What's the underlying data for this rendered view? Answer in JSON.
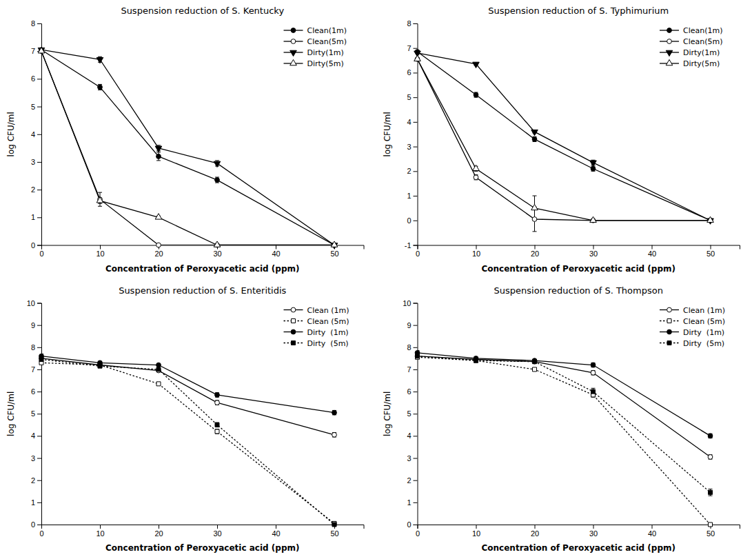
{
  "chart_data": [
    {
      "type": "line",
      "title": "Suspension reduction of S. Kentucky",
      "xlabel": "Concentration of Peroxyacetic acid (ppm)",
      "ylabel": "log CFU/ml",
      "x": [
        0,
        10,
        20,
        30,
        50
      ],
      "xlim": [
        0,
        55
      ],
      "xticks": [
        0,
        10,
        20,
        30,
        40,
        50
      ],
      "ylim": [
        0,
        8
      ],
      "yticks": [
        0,
        1,
        2,
        3,
        4,
        5,
        6,
        7,
        8
      ],
      "grid": false,
      "legend": "upper-right",
      "series": [
        {
          "name": "Clean(1m)",
          "color": "black",
          "marker": "circle-filled",
          "line_style": "solid",
          "values": [
            7.05,
            5.7,
            3.2,
            2.35,
            0.0
          ],
          "errors": [
            0.05,
            0.1,
            0.15,
            0.1,
            0.0
          ]
        },
        {
          "name": "Clean(5m)",
          "color": "black",
          "marker": "circle-open",
          "line_style": "solid",
          "values": [
            7.0,
            1.65,
            0.0,
            0.0,
            0.0
          ],
          "errors": [
            0.05,
            0.25,
            0.0,
            0.0,
            0.0
          ]
        },
        {
          "name": "Dirty(1m)",
          "color": "black",
          "marker": "triangle-down-filled",
          "line_style": "solid",
          "values": [
            7.05,
            6.7,
            3.5,
            2.95,
            0.0
          ],
          "errors": [
            0.05,
            0.1,
            0.1,
            0.1,
            0.0
          ]
        },
        {
          "name": "Dirty(5m)",
          "color": "black",
          "marker": "triangle-up-open",
          "line_style": "solid",
          "values": [
            7.0,
            1.6,
            1.0,
            0.0,
            0.0
          ],
          "errors": [
            0.05,
            0.1,
            0.05,
            0.0,
            0.0
          ]
        }
      ]
    },
    {
      "type": "line",
      "title": "Suspension reduction of S. Typhimurium",
      "xlabel": "Concentration of Peroxyacetic acid (ppm)",
      "ylabel": "log CFU/ml",
      "x": [
        0,
        10,
        20,
        30,
        50
      ],
      "xlim": [
        0,
        55
      ],
      "xticks": [
        0,
        10,
        20,
        30,
        40,
        50
      ],
      "ylim": [
        -1,
        8
      ],
      "yticks": [
        -1,
        0,
        1,
        2,
        3,
        4,
        5,
        6,
        7,
        8
      ],
      "grid": false,
      "legend": "upper-right",
      "series": [
        {
          "name": "Clean(1m)",
          "color": "black",
          "marker": "circle-filled",
          "line_style": "solid",
          "values": [
            6.85,
            5.1,
            3.3,
            2.1,
            0.0
          ],
          "errors": [
            0.05,
            0.1,
            0.1,
            0.1,
            0.0
          ]
        },
        {
          "name": "Clean(5m)",
          "color": "black",
          "marker": "circle-open",
          "line_style": "solid",
          "values": [
            6.55,
            1.75,
            0.05,
            0.0,
            0.0
          ],
          "errors": [
            0.05,
            0.1,
            0.5,
            0.0,
            0.0
          ]
        },
        {
          "name": "Dirty(1m)",
          "color": "black",
          "marker": "triangle-down-filled",
          "line_style": "solid",
          "values": [
            6.8,
            6.35,
            3.6,
            2.35,
            0.0
          ],
          "errors": [
            0.05,
            0.05,
            0.05,
            0.1,
            0.0
          ]
        },
        {
          "name": "Dirty(5m)",
          "color": "black",
          "marker": "triangle-up-open",
          "line_style": "solid",
          "values": [
            6.55,
            2.1,
            0.5,
            0.0,
            0.0
          ],
          "errors": [
            0.05,
            0.1,
            0.5,
            0.0,
            0.0
          ]
        }
      ]
    },
    {
      "type": "line",
      "title": "Suspension reduction of S. Enteritidis",
      "xlabel": "Concentration of Peroxyacetic acid (ppm)",
      "ylabel": "log CFU/ml",
      "x": [
        0,
        10,
        20,
        30,
        50
      ],
      "xlim": [
        0,
        55
      ],
      "xticks": [
        0,
        10,
        20,
        30,
        40,
        50
      ],
      "ylim": [
        0,
        10
      ],
      "yticks": [
        0,
        1,
        2,
        3,
        4,
        5,
        6,
        7,
        8,
        9,
        10
      ],
      "grid": false,
      "legend": "upper-right",
      "series": [
        {
          "name": "Clean (1m)",
          "color": "black",
          "marker": "circle-open",
          "line_style": "solid",
          "values": [
            7.5,
            7.2,
            6.95,
            5.5,
            4.05
          ],
          "errors": [
            0.1,
            0.05,
            0.05,
            0.1,
            0.1
          ]
        },
        {
          "name": "Clean (5m)",
          "color": "black",
          "marker": "square-open",
          "line_style": "dotted",
          "values": [
            7.3,
            7.2,
            6.35,
            4.2,
            0.05
          ],
          "errors": [
            0.05,
            0.05,
            0.05,
            0.1,
            0.05
          ]
        },
        {
          "name": "Dirty  (1m)",
          "color": "black",
          "marker": "circle-filled",
          "line_style": "solid",
          "values": [
            7.6,
            7.3,
            7.2,
            5.85,
            5.05
          ],
          "errors": [
            0.1,
            0.05,
            0.05,
            0.1,
            0.1
          ]
        },
        {
          "name": "Dirty  (5m)",
          "color": "black",
          "marker": "square-filled",
          "line_style": "dotted",
          "values": [
            7.45,
            7.15,
            7.0,
            4.5,
            0.0
          ],
          "errors": [
            0.1,
            0.05,
            0.05,
            0.1,
            0.0
          ]
        }
      ]
    },
    {
      "type": "line",
      "title": "Suspension reduction of S. Thompson",
      "xlabel": "Concentration of Peroxyacetic acid (ppm)",
      "ylabel": "log CFU/ml",
      "x": [
        0,
        10,
        20,
        30,
        50
      ],
      "xlim": [
        0,
        55
      ],
      "xticks": [
        0,
        10,
        20,
        30,
        40,
        50
      ],
      "ylim": [
        0,
        10
      ],
      "yticks": [
        0,
        1,
        2,
        3,
        4,
        5,
        6,
        7,
        8,
        9,
        10
      ],
      "grid": false,
      "legend": "upper-right",
      "series": [
        {
          "name": "Clean (1m)",
          "color": "black",
          "marker": "circle-open",
          "line_style": "solid",
          "values": [
            7.6,
            7.45,
            7.35,
            6.85,
            3.05
          ],
          "errors": [
            0.1,
            0.05,
            0.05,
            0.1,
            0.1
          ]
        },
        {
          "name": "Clean (5m)",
          "color": "black",
          "marker": "square-open",
          "line_style": "dotted",
          "values": [
            7.55,
            7.4,
            7.0,
            5.85,
            0.0
          ],
          "errors": [
            0.05,
            0.05,
            0.05,
            0.1,
            0.0
          ]
        },
        {
          "name": "Dirty  (1m)",
          "color": "black",
          "marker": "circle-filled",
          "line_style": "solid",
          "values": [
            7.75,
            7.5,
            7.4,
            7.2,
            4.0
          ],
          "errors": [
            0.1,
            0.05,
            0.05,
            0.1,
            0.1
          ]
        },
        {
          "name": "Dirty  (5m)",
          "color": "black",
          "marker": "square-filled",
          "line_style": "dotted",
          "values": [
            7.6,
            7.4,
            7.35,
            6.0,
            1.45
          ],
          "errors": [
            0.1,
            0.05,
            0.05,
            0.15,
            0.15
          ]
        }
      ]
    }
  ]
}
